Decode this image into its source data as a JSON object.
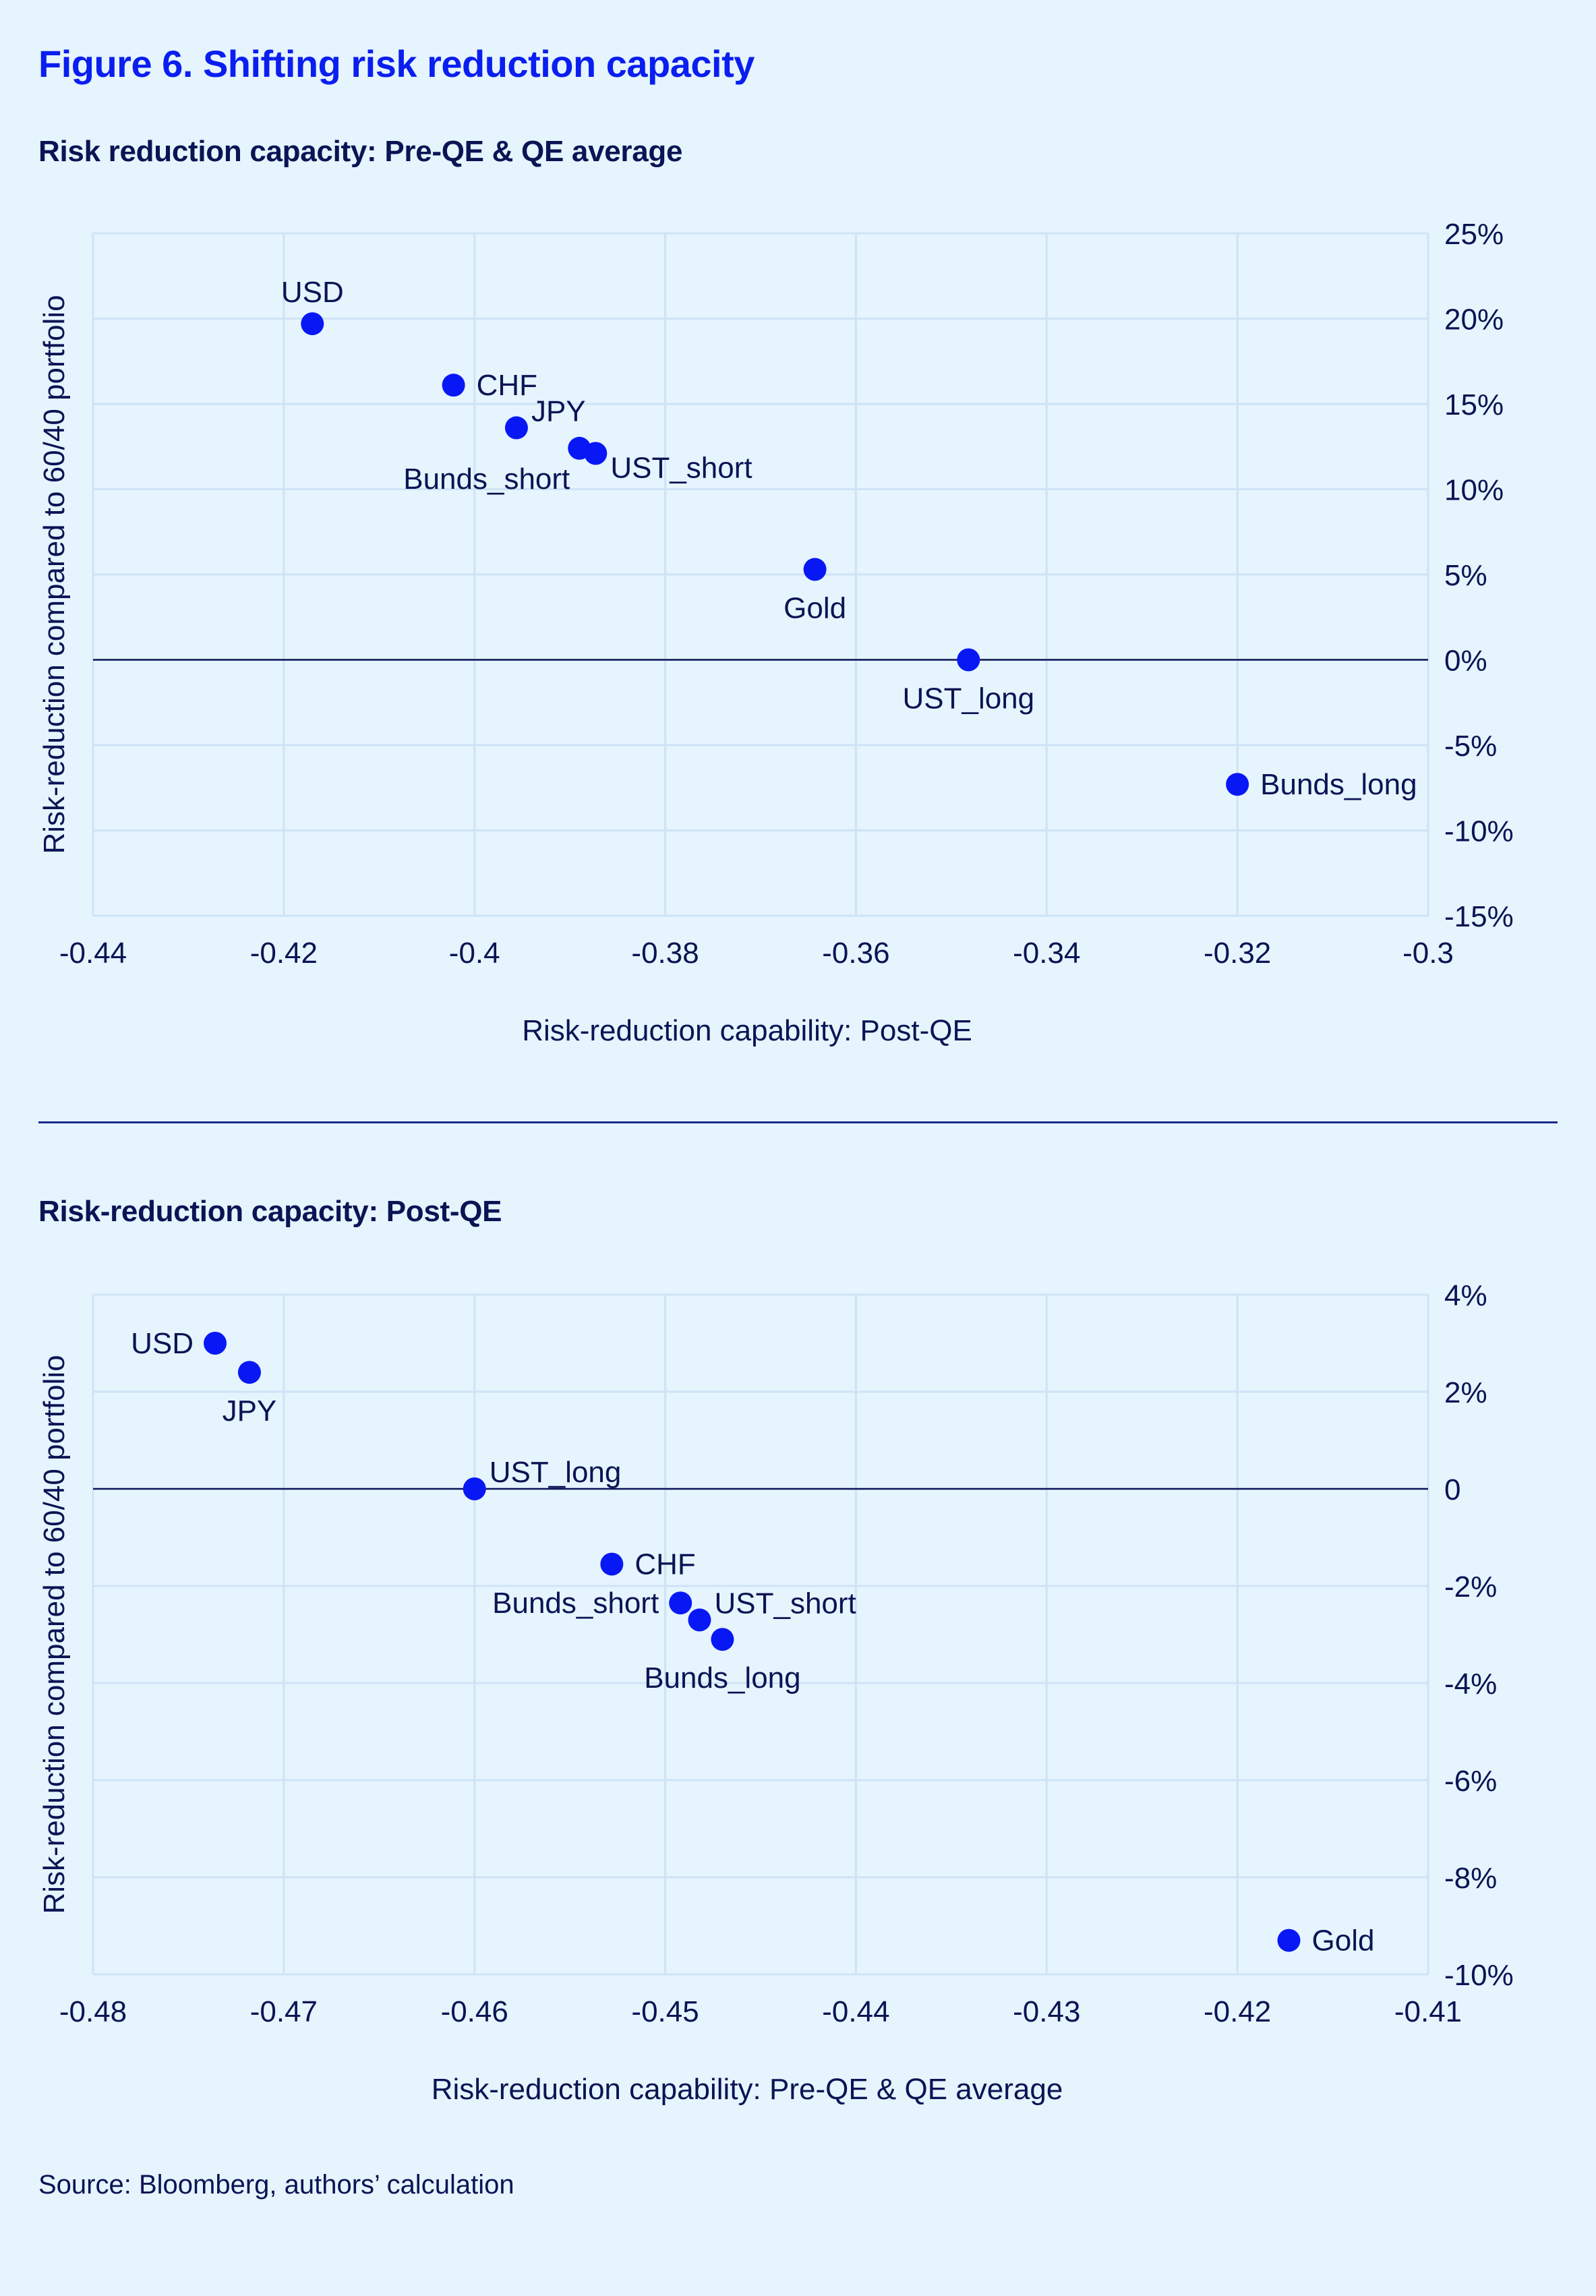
{
  "figure": {
    "title": "Figure 6. Shifting risk reduction capacity",
    "source": "Source: Bloomberg, authors’ calculation",
    "accent_color": "#0a1ef0",
    "point_color": "#0818f5",
    "background_color": "#e6f4fd"
  },
  "chart_data": [
    {
      "type": "scatter",
      "title": "Risk reduction capacity: Pre-QE & QE average",
      "xlabel": "Risk-reduction capability: Post-QE",
      "ylabel": "Risk-reduction compared to 60/40 portfolio",
      "xlim": [
        -0.44,
        -0.3
      ],
      "ylim": [
        -15,
        25
      ],
      "x_ticks": [
        -0.44,
        -0.42,
        -0.4,
        -0.38,
        -0.36,
        -0.34,
        -0.32,
        -0.3
      ],
      "x_tick_labels": [
        "-0.44",
        "-0.42",
        "-0.4",
        "-0.38",
        "-0.36",
        "-0.34",
        "-0.32",
        "-0.3"
      ],
      "y_ticks": [
        25,
        20,
        15,
        10,
        5,
        0,
        -5,
        -10,
        -15
      ],
      "y_tick_labels": [
        "25%",
        "20%",
        "15%",
        "10%",
        "5%",
        "0%",
        "-5%",
        "-10%",
        "-15%"
      ],
      "y_axis_side": "right",
      "y_unit": "%",
      "grid": true,
      "zero_line": true,
      "points": [
        {
          "label": "USD",
          "x": -0.417,
          "y": 19.7,
          "label_pos": "top"
        },
        {
          "label": "CHF",
          "x": -0.4022,
          "y": 16.1,
          "label_pos": "right"
        },
        {
          "label": "JPY",
          "x": -0.3956,
          "y": 13.6,
          "label_pos": "right-up"
        },
        {
          "label": "Bunds_short",
          "x": -0.389,
          "y": 12.4,
          "label_pos": "bottom-left"
        },
        {
          "label": "UST_short",
          "x": -0.3873,
          "y": 12.1,
          "label_pos": "right-down"
        },
        {
          "label": "Gold",
          "x": -0.3643,
          "y": 5.3,
          "label_pos": "bottom"
        },
        {
          "label": "UST_long",
          "x": -0.3482,
          "y": 0.0,
          "label_pos": "bottom"
        },
        {
          "label": "Bunds_long",
          "x": -0.32,
          "y": -7.3,
          "label_pos": "right"
        }
      ]
    },
    {
      "type": "scatter",
      "title": "Risk-reduction capacity: Post-QE",
      "xlabel": "Risk-reduction capability: Pre-QE & QE average",
      "ylabel": "Risk-reduction compared to 60/40 portfolio",
      "xlim": [
        -0.48,
        -0.41
      ],
      "ylim": [
        -10,
        4
      ],
      "x_ticks": [
        -0.48,
        -0.47,
        -0.46,
        -0.45,
        -0.44,
        -0.43,
        -0.42,
        -0.41
      ],
      "x_tick_labels": [
        "-0.48",
        "-0.47",
        "-0.46",
        "-0.45",
        "-0.44",
        "-0.43",
        "-0.42",
        "-0.41"
      ],
      "y_ticks": [
        4,
        2,
        0,
        -2,
        -4,
        -6,
        -8,
        -10
      ],
      "y_tick_labels": [
        "4%",
        "2%",
        "0",
        "-2%",
        "-4%",
        "-6%",
        "-8%",
        "-10%"
      ],
      "y_axis_side": "right",
      "y_unit": "%",
      "grid": true,
      "zero_line": true,
      "points": [
        {
          "label": "USD",
          "x": -0.4736,
          "y": 3.0,
          "label_pos": "left"
        },
        {
          "label": "JPY",
          "x": -0.4718,
          "y": 2.4,
          "label_pos": "bottom"
        },
        {
          "label": "UST_long",
          "x": -0.46,
          "y": 0.0,
          "label_pos": "right-up"
        },
        {
          "label": "CHF",
          "x": -0.4528,
          "y": -1.55,
          "label_pos": "right"
        },
        {
          "label": "Bunds_short",
          "x": -0.4492,
          "y": -2.35,
          "label_pos": "left"
        },
        {
          "label": "UST_short",
          "x": -0.4482,
          "y": -2.7,
          "label_pos": "right-up"
        },
        {
          "label": "Bunds_long",
          "x": -0.447,
          "y": -3.1,
          "label_pos": "bottom"
        },
        {
          "label": "Gold",
          "x": -0.4173,
          "y": -9.3,
          "label_pos": "right"
        }
      ]
    }
  ]
}
